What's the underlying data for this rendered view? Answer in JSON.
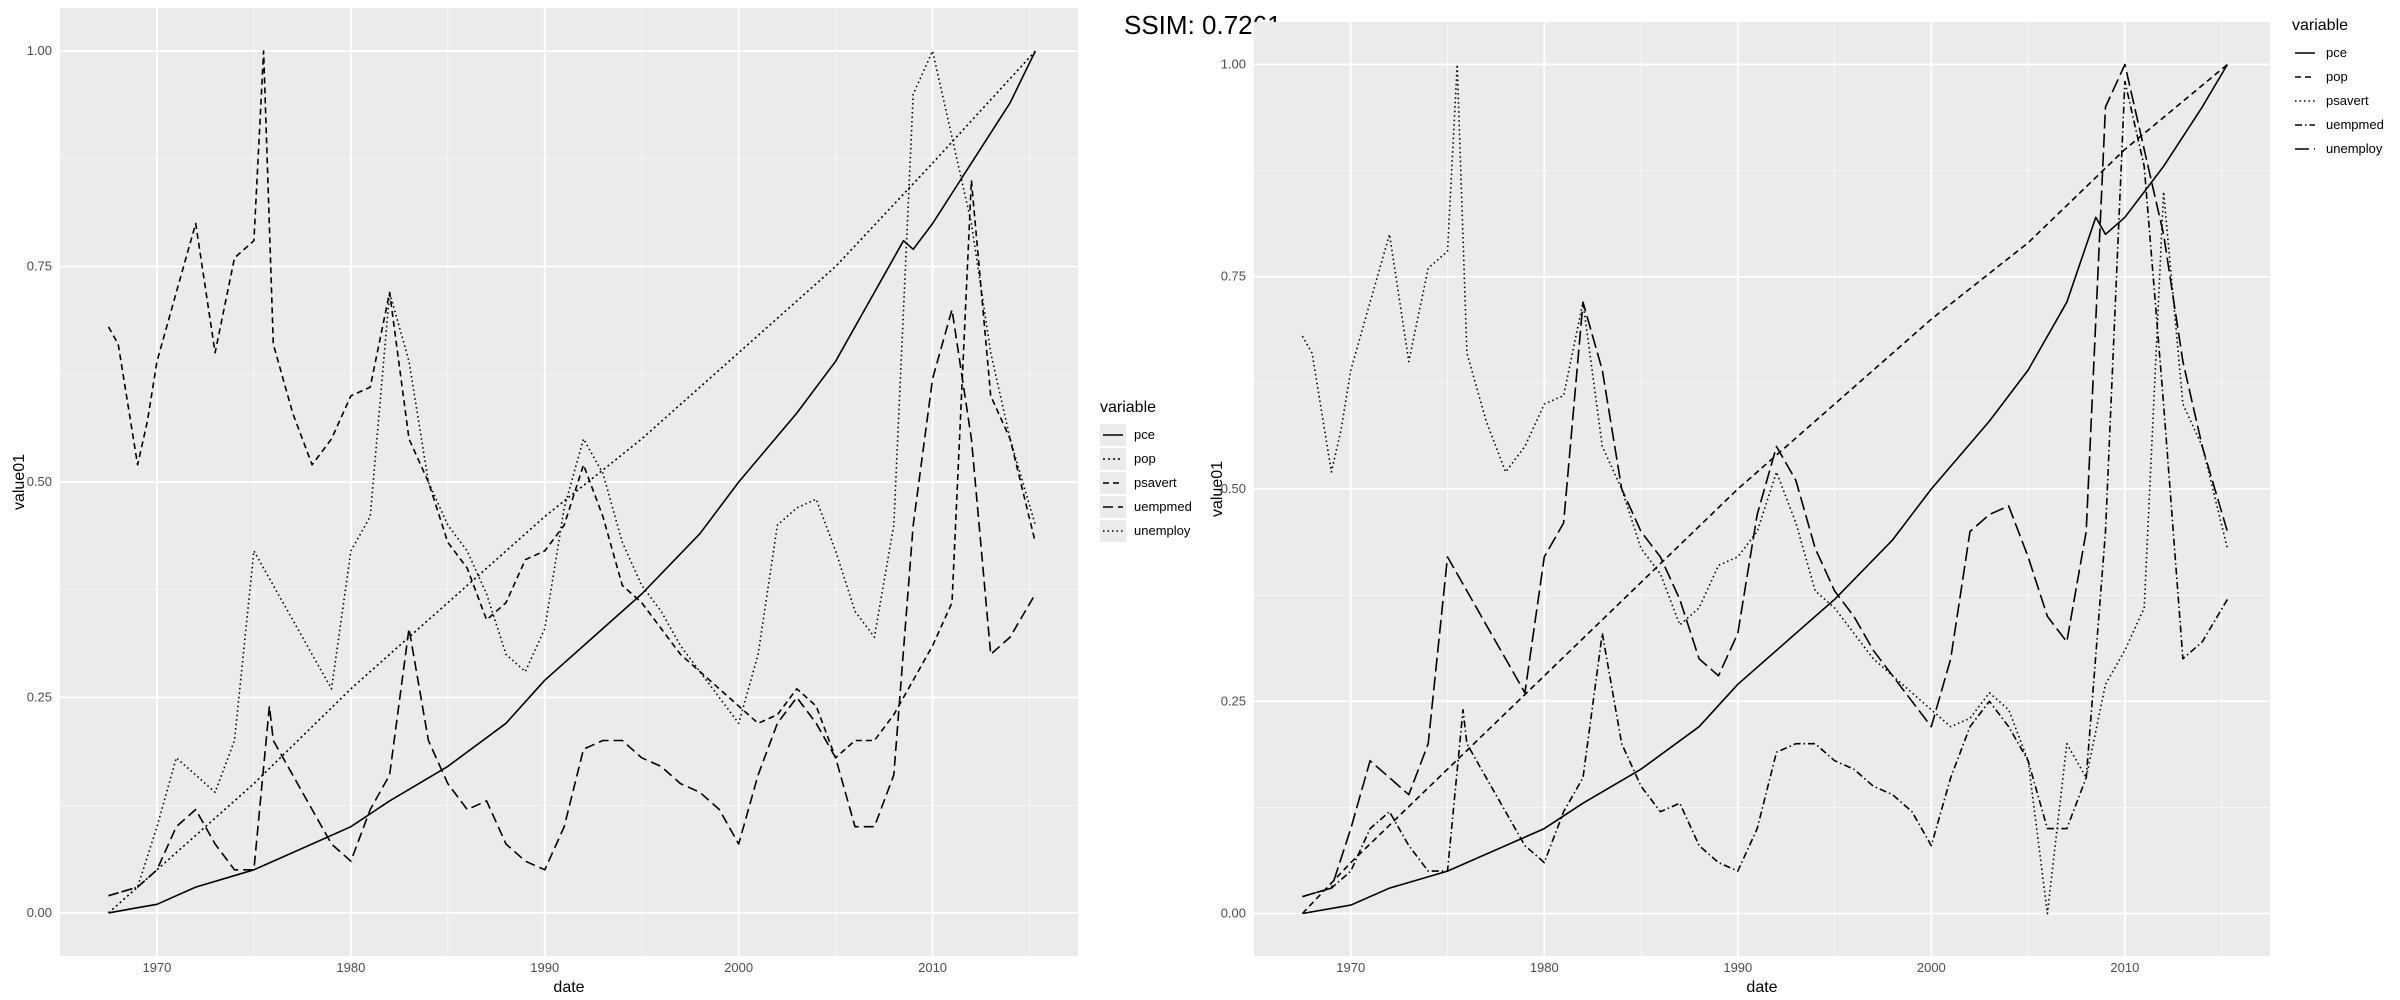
{
  "ssim_label": "SSIM: 0.7261",
  "chart_data": [
    {
      "type": "line",
      "xlabel": "date",
      "ylabel": "value01",
      "xlim": [
        1965,
        2017.5
      ],
      "ylim": [
        -0.05,
        1.05
      ],
      "x_ticks": [
        1970,
        1980,
        1990,
        2000,
        2010
      ],
      "y_ticks": [
        0.0,
        0.25,
        0.5,
        0.75,
        1.0
      ],
      "y_tick_labels": [
        "0.00",
        "0.25",
        "0.50",
        "0.75",
        "1.00"
      ],
      "grid": true,
      "legend": {
        "title": "variable",
        "placement": "right-middle"
      },
      "series": [
        {
          "name": "pce",
          "dash": "solid",
          "x": [
            1967.5,
            1970,
            1972,
            1975,
            1978,
            1980,
            1982,
            1985,
            1988,
            1990,
            1993,
            1995,
            1998,
            2000,
            2003,
            2005,
            2007,
            2008.5,
            2009,
            2010,
            2012,
            2014,
            2015.3
          ],
          "y": [
            0.0,
            0.01,
            0.03,
            0.05,
            0.08,
            0.1,
            0.13,
            0.17,
            0.22,
            0.27,
            0.33,
            0.37,
            0.44,
            0.5,
            0.58,
            0.64,
            0.72,
            0.78,
            0.77,
            0.8,
            0.87,
            0.94,
            1.0
          ]
        },
        {
          "name": "pop",
          "dash": "short",
          "x": [
            1967.5,
            1970,
            1975,
            1980,
            1985,
            1990,
            1995,
            2000,
            2005,
            2010,
            2015.3
          ],
          "y": [
            0.0,
            0.05,
            0.15,
            0.26,
            0.36,
            0.46,
            0.55,
            0.65,
            0.75,
            0.87,
            1.0
          ]
        },
        {
          "name": "psavert",
          "dash": "medium",
          "x": [
            1967.5,
            1968,
            1969,
            1969.5,
            1970,
            1971,
            1972,
            1973,
            1974,
            1975,
            1975.5,
            1976,
            1977,
            1978,
            1979,
            1980,
            1981,
            1982,
            1983,
            1984,
            1985,
            1986,
            1987,
            1988,
            1989,
            1990,
            1991,
            1992,
            1993,
            1994,
            1995,
            1996,
            1997,
            1998,
            1999,
            2000,
            2001,
            2002,
            2003,
            2004,
            2005,
            2006,
            2007,
            2008,
            2009,
            2010,
            2011,
            2012,
            2013,
            2014,
            2015.3
          ],
          "y": [
            0.68,
            0.66,
            0.52,
            0.57,
            0.64,
            0.72,
            0.8,
            0.65,
            0.76,
            0.78,
            1.0,
            0.66,
            0.58,
            0.52,
            0.55,
            0.6,
            0.61,
            0.72,
            0.55,
            0.5,
            0.43,
            0.4,
            0.34,
            0.36,
            0.41,
            0.42,
            0.45,
            0.52,
            0.46,
            0.38,
            0.36,
            0.33,
            0.3,
            0.28,
            0.26,
            0.24,
            0.22,
            0.23,
            0.26,
            0.24,
            0.18,
            0.2,
            0.2,
            0.23,
            0.27,
            0.31,
            0.36,
            0.85,
            0.6,
            0.55,
            0.43
          ]
        },
        {
          "name": "uempmed",
          "dash": "long",
          "x": [
            1967.5,
            1969,
            1970,
            1971,
            1972,
            1973,
            1974,
            1975,
            1975.8,
            1976,
            1977,
            1978,
            1979,
            1980,
            1981,
            1982,
            1983,
            1984,
            1985,
            1986,
            1987,
            1988,
            1989,
            1990,
            1991,
            1992,
            1993,
            1994,
            1995,
            1996,
            1997,
            1998,
            1999,
            2000,
            2001,
            2002,
            2003,
            2004,
            2005,
            2006,
            2007,
            2008,
            2009,
            2010,
            2011,
            2012,
            2013,
            2014,
            2015.3
          ],
          "y": [
            0.02,
            0.03,
            0.05,
            0.1,
            0.12,
            0.08,
            0.05,
            0.05,
            0.24,
            0.2,
            0.16,
            0.12,
            0.08,
            0.06,
            0.12,
            0.16,
            0.33,
            0.2,
            0.15,
            0.12,
            0.13,
            0.08,
            0.06,
            0.05,
            0.1,
            0.19,
            0.2,
            0.2,
            0.18,
            0.17,
            0.15,
            0.14,
            0.12,
            0.08,
            0.16,
            0.22,
            0.25,
            0.22,
            0.18,
            0.1,
            0.1,
            0.16,
            0.45,
            0.62,
            0.7,
            0.55,
            0.3,
            0.32,
            0.37
          ]
        },
        {
          "name": "unemploy",
          "dash": "dotted",
          "x": [
            1967.5,
            1969,
            1970,
            1971,
            1972,
            1973,
            1974,
            1975,
            1975.5,
            1976,
            1977,
            1978,
            1979,
            1980,
            1981,
            1982,
            1983,
            1984,
            1985,
            1986,
            1987,
            1988,
            1989,
            1990,
            1991,
            1992,
            1993,
            1994,
            1995,
            1996,
            1997,
            1998,
            1999,
            2000,
            2001,
            2002,
            2003,
            2004,
            2005,
            2006,
            2007,
            2008,
            2009,
            2010,
            2011,
            2012,
            2013,
            2014,
            2015.3
          ],
          "y": [
            0.02,
            0.03,
            0.1,
            0.18,
            0.16,
            0.14,
            0.2,
            0.42,
            0.4,
            0.38,
            0.34,
            0.3,
            0.26,
            0.42,
            0.46,
            0.72,
            0.64,
            0.5,
            0.45,
            0.42,
            0.37,
            0.3,
            0.28,
            0.33,
            0.47,
            0.55,
            0.51,
            0.43,
            0.38,
            0.35,
            0.31,
            0.28,
            0.25,
            0.22,
            0.3,
            0.45,
            0.47,
            0.48,
            0.42,
            0.35,
            0.32,
            0.45,
            0.95,
            1.0,
            0.9,
            0.8,
            0.65,
            0.55,
            0.45
          ]
        }
      ]
    },
    {
      "type": "line",
      "xlabel": "date",
      "ylabel": "value01",
      "xlim": [
        1965,
        2017.5
      ],
      "ylim": [
        -0.05,
        1.05
      ],
      "x_ticks": [
        1970,
        1980,
        1990,
        2000,
        2010
      ],
      "y_ticks": [
        0.0,
        0.25,
        0.5,
        0.75,
        1.0
      ],
      "y_tick_labels": [
        "0.00",
        "0.25",
        "0.50",
        "0.75",
        "1.00"
      ],
      "grid": true,
      "legend": {
        "title": "variable",
        "placement": "right-top"
      },
      "series": [
        {
          "name": "pce",
          "dash": "solid",
          "x": [
            1967.5,
            1970,
            1972,
            1975,
            1978,
            1980,
            1982,
            1985,
            1988,
            1990,
            1993,
            1995,
            1998,
            2000,
            2003,
            2005,
            2007,
            2008.5,
            2009,
            2010,
            2012,
            2014,
            2015.3
          ],
          "y": [
            0.0,
            0.01,
            0.03,
            0.05,
            0.08,
            0.1,
            0.13,
            0.17,
            0.22,
            0.27,
            0.33,
            0.37,
            0.44,
            0.5,
            0.58,
            0.64,
            0.72,
            0.82,
            0.8,
            0.82,
            0.88,
            0.95,
            1.0
          ]
        },
        {
          "name": "pop",
          "dash": "medium",
          "x": [
            1967.5,
            1970,
            1975,
            1980,
            1985,
            1990,
            1995,
            2000,
            2005,
            2010,
            2015.3
          ],
          "y": [
            0.0,
            0.06,
            0.17,
            0.28,
            0.39,
            0.5,
            0.6,
            0.7,
            0.79,
            0.9,
            1.0
          ]
        },
        {
          "name": "psavert",
          "dash": "dotted",
          "x": [
            1967.5,
            1968,
            1969,
            1969.5,
            1970,
            1971,
            1972,
            1973,
            1974,
            1975,
            1975.5,
            1976,
            1977,
            1978,
            1979,
            1980,
            1981,
            1982,
            1983,
            1984,
            1985,
            1986,
            1987,
            1988,
            1989,
            1990,
            1991,
            1992,
            1993,
            1994,
            1995,
            1996,
            1997,
            1998,
            1999,
            2000,
            2001,
            2002,
            2003,
            2004,
            2005,
            2006,
            2007,
            2008,
            2009,
            2010,
            2011,
            2012,
            2013,
            2014,
            2015.3
          ],
          "y": [
            0.68,
            0.66,
            0.52,
            0.57,
            0.64,
            0.72,
            0.8,
            0.65,
            0.76,
            0.78,
            1.0,
            0.66,
            0.58,
            0.52,
            0.55,
            0.6,
            0.61,
            0.72,
            0.55,
            0.5,
            0.43,
            0.4,
            0.34,
            0.36,
            0.41,
            0.42,
            0.45,
            0.52,
            0.46,
            0.38,
            0.36,
            0.33,
            0.3,
            0.28,
            0.26,
            0.24,
            0.22,
            0.23,
            0.26,
            0.24,
            0.18,
            0.0,
            0.2,
            0.16,
            0.27,
            0.31,
            0.36,
            0.85,
            0.6,
            0.55,
            0.43
          ]
        },
        {
          "name": "uempmed",
          "dash": "dashdot",
          "x": [
            1967.5,
            1969,
            1970,
            1971,
            1972,
            1973,
            1974,
            1975,
            1975.8,
            1976,
            1977,
            1978,
            1979,
            1980,
            1981,
            1982,
            1983,
            1984,
            1985,
            1986,
            1987,
            1988,
            1989,
            1990,
            1991,
            1992,
            1993,
            1994,
            1995,
            1996,
            1997,
            1998,
            1999,
            2000,
            2001,
            2002,
            2003,
            2004,
            2005,
            2006,
            2007,
            2008,
            2009,
            2010,
            2011,
            2012,
            2013,
            2014,
            2015.3
          ],
          "y": [
            0.02,
            0.03,
            0.05,
            0.1,
            0.12,
            0.08,
            0.05,
            0.05,
            0.24,
            0.2,
            0.16,
            0.12,
            0.08,
            0.06,
            0.12,
            0.16,
            0.33,
            0.2,
            0.15,
            0.12,
            0.13,
            0.08,
            0.06,
            0.05,
            0.1,
            0.19,
            0.2,
            0.2,
            0.18,
            0.17,
            0.15,
            0.14,
            0.12,
            0.08,
            0.16,
            0.22,
            0.25,
            0.22,
            0.18,
            0.1,
            0.1,
            0.16,
            0.45,
            0.98,
            0.88,
            0.6,
            0.3,
            0.32,
            0.37
          ]
        },
        {
          "name": "unemploy",
          "dash": "longdash",
          "x": [
            1967.5,
            1969,
            1970,
            1971,
            1972,
            1973,
            1974,
            1975,
            1975.5,
            1976,
            1977,
            1978,
            1979,
            1980,
            1981,
            1982,
            1983,
            1984,
            1985,
            1986,
            1987,
            1988,
            1989,
            1990,
            1991,
            1992,
            1993,
            1994,
            1995,
            1996,
            1997,
            1998,
            1999,
            2000,
            2001,
            2002,
            2003,
            2004,
            2005,
            2006,
            2007,
            2008,
            2009,
            2010,
            2011,
            2012,
            2013,
            2014,
            2015.3
          ],
          "y": [
            0.02,
            0.03,
            0.1,
            0.18,
            0.16,
            0.14,
            0.2,
            0.42,
            0.4,
            0.38,
            0.34,
            0.3,
            0.26,
            0.42,
            0.46,
            0.72,
            0.64,
            0.5,
            0.45,
            0.42,
            0.37,
            0.3,
            0.28,
            0.33,
            0.47,
            0.55,
            0.51,
            0.43,
            0.38,
            0.35,
            0.31,
            0.28,
            0.25,
            0.22,
            0.3,
            0.45,
            0.47,
            0.48,
            0.42,
            0.35,
            0.32,
            0.45,
            0.95,
            1.0,
            0.9,
            0.8,
            0.65,
            0.55,
            0.45
          ]
        }
      ]
    }
  ]
}
